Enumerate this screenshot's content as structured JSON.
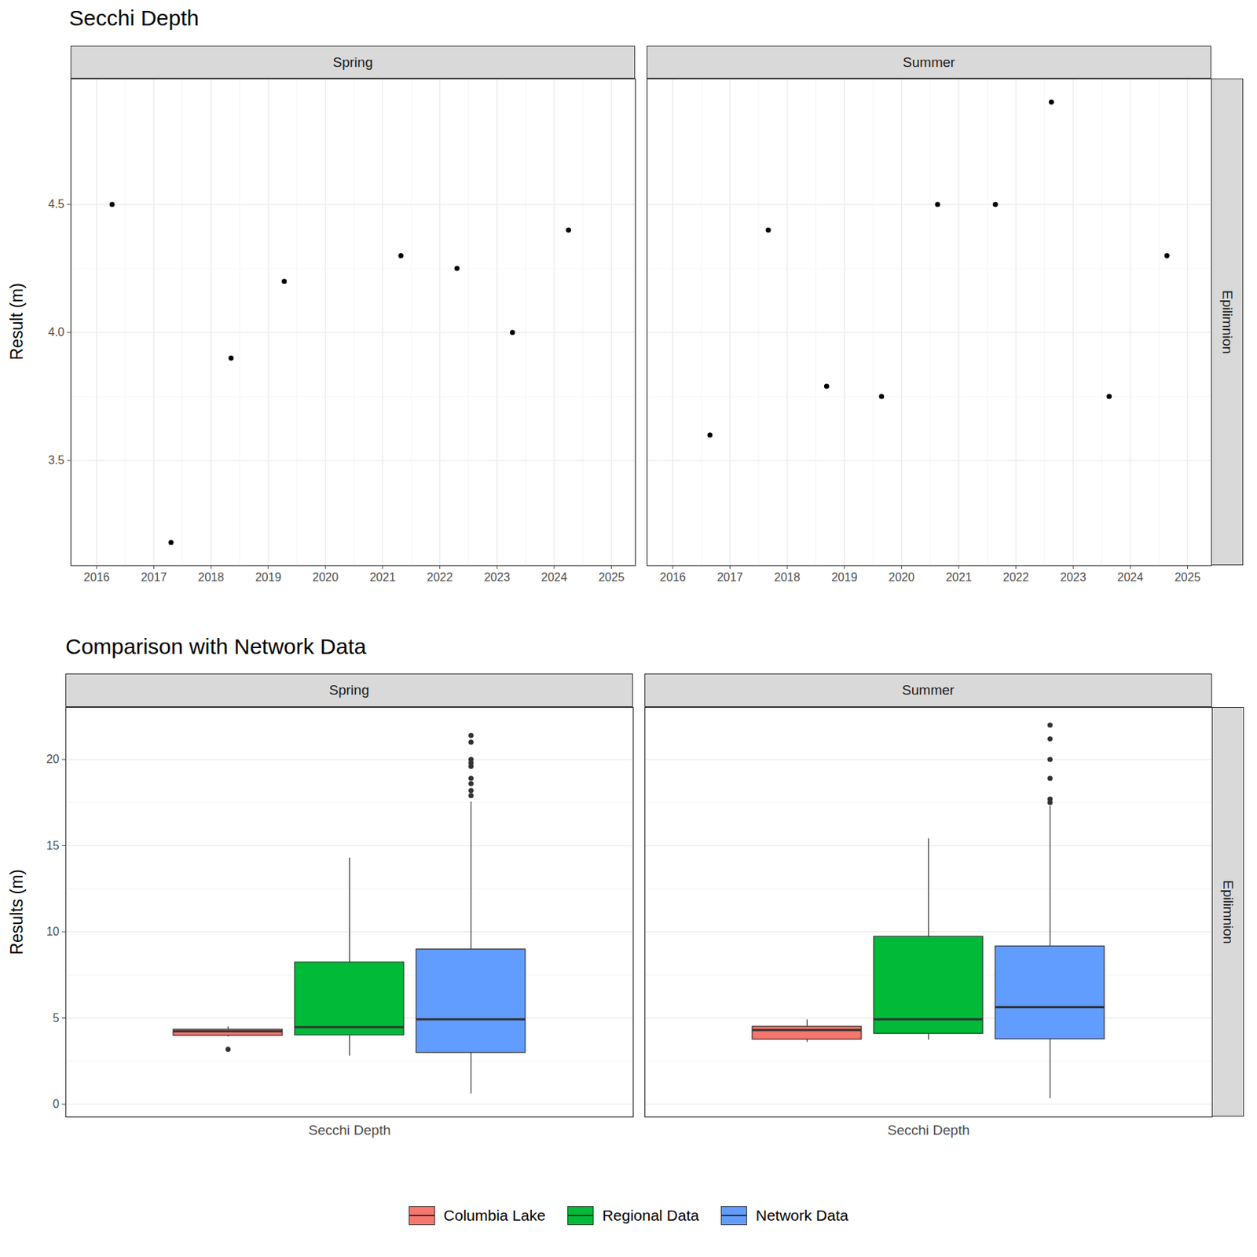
{
  "chart_data": [
    {
      "type": "scatter",
      "title": "Secchi Depth",
      "ylabel": "Result (m)",
      "facet_row": "Epilimnion",
      "color": "#000000",
      "grid": true,
      "xlim": [
        2015.55,
        2025.42
      ],
      "xticks": [
        2016,
        2017,
        2018,
        2019,
        2020,
        2021,
        2022,
        2023,
        2024,
        2025
      ],
      "ylim": [
        3.09,
        4.99
      ],
      "yticks": [
        3.5,
        {
          "value": 4,
          "label": "4.0"
        },
        4.5
      ],
      "facets": [
        {
          "name": "Spring",
          "x": [
            2016.27,
            2017.3,
            2018.35,
            2019.28,
            2021.32,
            2022.3,
            2023.27,
            2024.25
          ],
          "values": [
            4.5,
            3.18,
            3.9,
            4.2,
            4.3,
            4.25,
            4.0,
            4.4
          ]
        },
        {
          "name": "Summer",
          "x": [
            2016.65,
            2017.67,
            2018.69,
            2019.65,
            2020.63,
            2021.64,
            2022.62,
            2023.63,
            2024.64
          ],
          "values": [
            3.6,
            4.4,
            3.79,
            3.75,
            4.5,
            4.5,
            4.9,
            3.75,
            4.3
          ]
        }
      ]
    },
    {
      "type": "box",
      "title": "Comparison with Network Data",
      "ylabel": "Results (m)",
      "facet_row": "Epilimnion",
      "categories": [
        "Secchi Depth"
      ],
      "grid": true,
      "legend": "bottom",
      "ylim": [
        -0.74,
        23.02
      ],
      "yticks": [
        0,
        5,
        10,
        15,
        20
      ],
      "facets": [
        "Spring",
        "Summer"
      ],
      "series": [
        {
          "name": "Columbia Lake",
          "color": "#F8766D",
          "boxes": [
            {
              "low": 3.9,
              "q1": 3.975,
              "median": 4.225,
              "q3": 4.325,
              "high": 4.5,
              "outliers": [
                3.18
              ]
            },
            {
              "low": 3.6,
              "q1": 3.75,
              "median": 4.3,
              "q3": 4.5,
              "high": 4.9,
              "outliers": []
            }
          ]
        },
        {
          "name": "Regional Data",
          "color": "#00BA38",
          "boxes": [
            {
              "low": 2.79,
              "q1": 4.0,
              "median": 4.47,
              "q3": 8.23,
              "high": 14.28,
              "outliers": []
            },
            {
              "low": 3.72,
              "q1": 4.09,
              "median": 4.93,
              "q3": 9.72,
              "high": 15.4,
              "outliers": []
            }
          ]
        },
        {
          "name": "Network Data",
          "color": "#619CFF",
          "boxes": [
            {
              "low": 0.6,
              "q1": 2.98,
              "median": 4.93,
              "q3": 8.98,
              "high": 17.53,
              "outliers": [
                21.4,
                21.0,
                20.0,
                19.8,
                19.6,
                18.9,
                18.6,
                18.2,
                17.9
              ]
            },
            {
              "low": 0.33,
              "q1": 3.77,
              "median": 5.63,
              "q3": 9.16,
              "high": 17.3,
              "outliers": [
                22.0,
                21.2,
                20.0,
                18.9,
                17.7,
                17.5
              ]
            }
          ]
        }
      ]
    }
  ]
}
